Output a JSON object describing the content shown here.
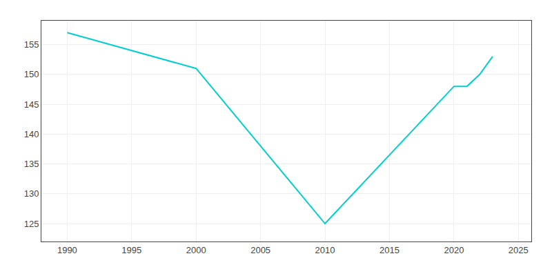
{
  "chart_data": {
    "type": "line",
    "x": [
      1990,
      2000,
      2010,
      2020,
      2021,
      2022,
      2023
    ],
    "values": [
      157,
      151,
      125,
      148,
      148,
      150,
      153
    ],
    "color": "#00CED1",
    "xlim": [
      1988,
      2026
    ],
    "ylim": [
      122,
      159
    ],
    "xticks": [
      1990,
      1995,
      2000,
      2005,
      2010,
      2015,
      2020,
      2025
    ],
    "yticks": [
      125,
      130,
      135,
      140,
      145,
      150,
      155
    ],
    "grid": true
  }
}
